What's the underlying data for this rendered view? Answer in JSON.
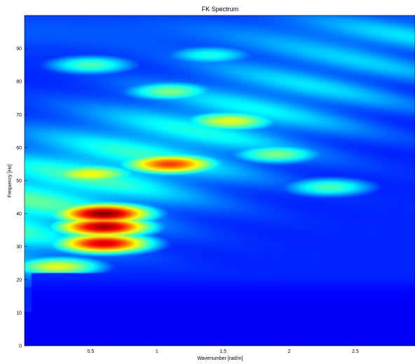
{
  "chart_data": {
    "type": "heatmap",
    "title": "FK Spectrum",
    "xlabel": "Wavenumber [rad/m]",
    "ylabel": "Frequency [Hz]",
    "xlim": [
      0.0,
      2.95
    ],
    "ylim": [
      0,
      100
    ],
    "xticks": [
      0.5,
      1,
      1.5,
      2,
      2.5
    ],
    "xtick_labels": [
      "0.5",
      "1",
      "1.5",
      "2",
      "2.5"
    ],
    "yticks": [
      0,
      10,
      20,
      30,
      40,
      50,
      60,
      70,
      80,
      90
    ],
    "ytick_labels": [
      "0",
      "10",
      "20",
      "30",
      "40",
      "50",
      "60",
      "70",
      "80",
      "90"
    ],
    "colormap": "jet",
    "grid": false,
    "peaks": [
      {
        "k": 0.6,
        "f": 40,
        "amplitude": 1.0
      },
      {
        "k": 0.6,
        "f": 36,
        "amplitude": 0.97
      },
      {
        "k": 0.6,
        "f": 31,
        "amplitude": 0.92
      },
      {
        "k": 1.1,
        "f": 55,
        "amplitude": 0.82
      },
      {
        "k": 0.25,
        "f": 24,
        "amplitude": 0.6
      },
      {
        "k": 0.5,
        "f": 52,
        "amplitude": 0.62
      },
      {
        "k": 1.55,
        "f": 68,
        "amplitude": 0.6
      },
      {
        "k": 1.1,
        "f": 77,
        "amplitude": 0.5
      },
      {
        "k": 1.9,
        "f": 58,
        "amplitude": 0.5
      },
      {
        "k": 2.3,
        "f": 48,
        "amplitude": 0.45
      },
      {
        "k": 0.5,
        "f": 85,
        "amplitude": 0.45
      },
      {
        "k": 1.4,
        "f": 88,
        "amplitude": 0.4
      }
    ]
  }
}
